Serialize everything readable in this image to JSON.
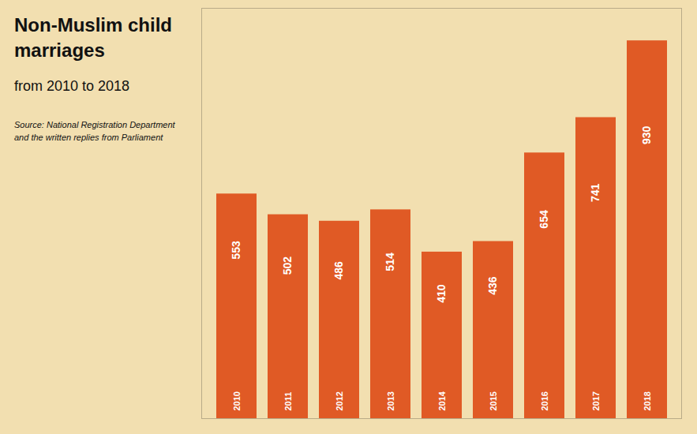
{
  "chart_data": {
    "type": "bar",
    "title": "Non-Muslim child marriages",
    "subtitle": "from 2010 to 2018",
    "annotations": [
      "Source: National Registration Department",
      "and the written replies from Parliament"
    ],
    "categories": [
      "2010",
      "2011",
      "2012",
      "2013",
      "2014",
      "2015",
      "2016",
      "2017",
      "2018"
    ],
    "values": [
      553,
      502,
      486,
      514,
      410,
      436,
      654,
      741,
      930
    ],
    "color": "#E05A25",
    "ylim": [
      0,
      1010
    ],
    "yticks": [],
    "grid": false,
    "tick_labels": false,
    "data_labels": true
  }
}
